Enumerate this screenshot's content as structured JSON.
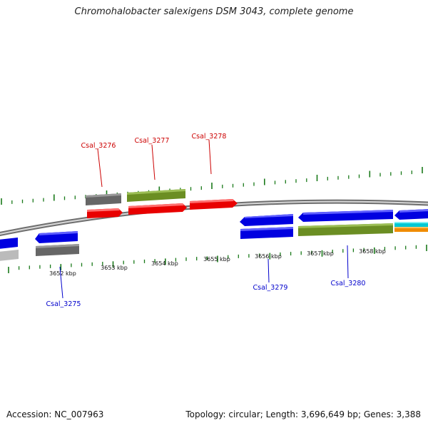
{
  "header": {
    "title": "Chromohalobacter salexigens DSM 3043, complete genome"
  },
  "footer": {
    "accession": "Accession: NC_007963",
    "summary": "Topology: circular; Length: 3,696,649 bp; Genes: 3,388"
  },
  "colors": {
    "tick": "#1a7a1a",
    "backbone": "#8c8c8c",
    "forward_label": "#cc0000",
    "reverse_label": "#0000cc",
    "gene_red": "#e80000",
    "gene_blue": "#0000e0",
    "gene_olive": "#6b8e23",
    "gene_gray": "#666666",
    "gene_lightgray": "#bbbbbb",
    "gene_cyan": "#00c8d2",
    "gene_orange": "#f08c00"
  },
  "scale": {
    "unit": "kbp",
    "labels": [
      "3652 kbp",
      "3653 kbp",
      "3654 kbp",
      "3655 kbp",
      "3656 kbp",
      "3657 kbp",
      "3658 kbp"
    ]
  },
  "gene_labels": {
    "forward": [
      "Csal_3276",
      "Csal_3277",
      "Csal_3278"
    ],
    "reverse": [
      "Csal_3275",
      "Csal_3279",
      "Csal_3280"
    ]
  }
}
